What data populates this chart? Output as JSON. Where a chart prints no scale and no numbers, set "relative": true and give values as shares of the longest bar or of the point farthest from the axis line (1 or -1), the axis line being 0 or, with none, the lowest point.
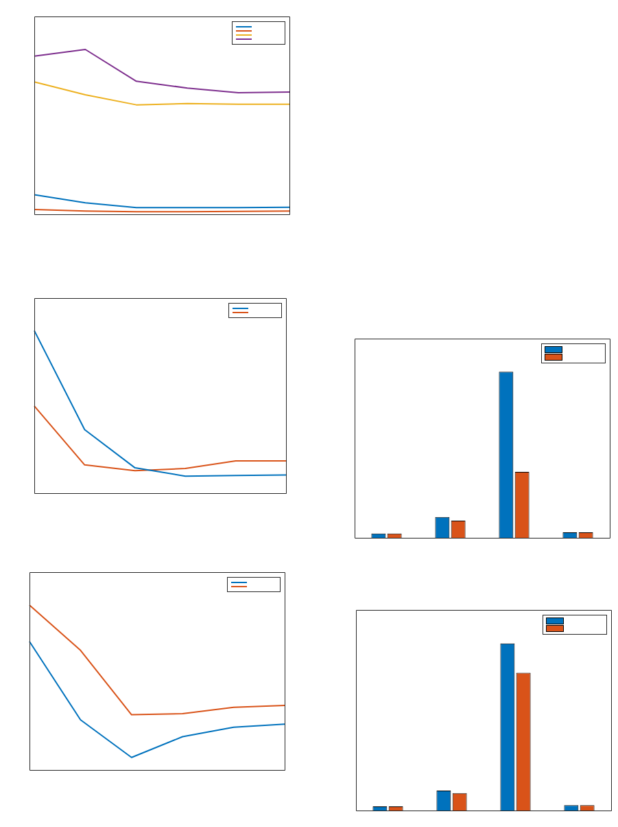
{
  "chart_data": [
    {
      "type": "line",
      "relative": true,
      "categories": [
        null,
        null,
        null,
        null,
        null,
        null
      ],
      "series": [
        {
          "color": "#0072bd",
          "values": [
            0.119,
            0.07,
            0.041,
            0.041,
            0.041,
            0.043
          ]
        },
        {
          "color": "#d95319",
          "values": [
            0.029,
            0.02,
            0.016,
            0.016,
            0.018,
            0.02
          ]
        },
        {
          "color": "#edb120",
          "values": [
            0.803,
            0.725,
            0.664,
            0.672,
            0.668,
            0.668
          ]
        },
        {
          "color": "#7e2f8e",
          "values": [
            0.959,
            1,
            0.807,
            0.766,
            0.738,
            0.742
          ]
        }
      ]
    },
    {
      "type": "line",
      "relative": true,
      "categories": [
        null,
        null,
        null,
        null,
        null,
        null
      ],
      "series": [
        {
          "color": "#0072bd",
          "values": [
            1,
            0.391,
            0.156,
            0.105,
            0.109,
            0.112
          ]
        },
        {
          "color": "#d95319",
          "values": [
            0.536,
            0.174,
            0.138,
            0.152,
            0.199,
            0.199
          ]
        }
      ]
    },
    {
      "type": "line",
      "relative": true,
      "categories": [
        null,
        null,
        null,
        null,
        null,
        null
      ],
      "series": [
        {
          "color": "#0072bd",
          "values": [
            0.779,
            0.304,
            0.076,
            0.202,
            0.259,
            0.278
          ]
        },
        {
          "color": "#d95319",
          "values": [
            1,
            0.726,
            0.335,
            0.342,
            0.38,
            0.392
          ]
        }
      ]
    },
    {
      "type": "bar",
      "relative": true,
      "categories": [
        null,
        null,
        null,
        null
      ],
      "series": [
        {
          "color": "#0072bd",
          "values": [
            0.026,
            0.125,
            1,
            0.033
          ]
        },
        {
          "color": "#d95319",
          "values": [
            0.026,
            0.103,
            0.397,
            0.033
          ]
        }
      ]
    },
    {
      "type": "bar",
      "relative": true,
      "categories": [
        null,
        null,
        null,
        null
      ],
      "series": [
        {
          "color": "#0072bd",
          "values": [
            0.025,
            0.119,
            1,
            0.032
          ]
        },
        {
          "color": "#d95319",
          "values": [
            0.025,
            0.104,
            0.824,
            0.032
          ]
        }
      ]
    }
  ]
}
